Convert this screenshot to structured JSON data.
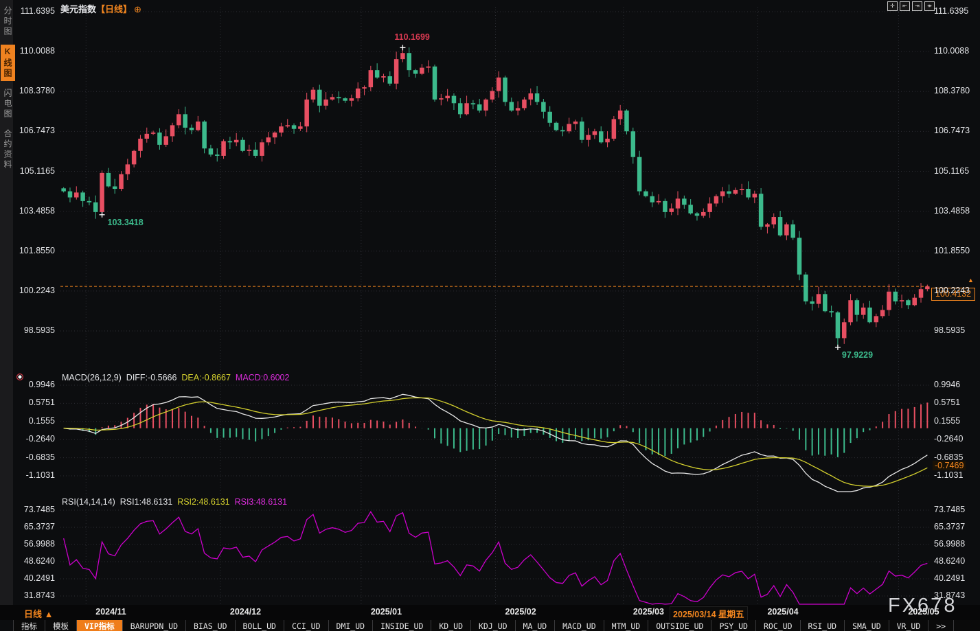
{
  "window": {
    "symbol": "美元指数",
    "period": "【日线】",
    "plus_icon": "⊕"
  },
  "sidebar": {
    "items": [
      {
        "label": "分时图",
        "active": false
      },
      {
        "label": "K线图",
        "active": true
      },
      {
        "label": "闪电图",
        "active": false
      },
      {
        "label": "合约资料",
        "active": false
      }
    ]
  },
  "top_icons": [
    "crosshair-icon",
    "y-axis-scale-icon",
    "x-axis-scale-icon",
    "pan-right-icon"
  ],
  "price_panel": {
    "axis_labels": [
      "111.6395",
      "110.0088",
      "108.3780",
      "106.7473",
      "105.1165",
      "103.4858",
      "101.8550",
      "100.2243",
      "98.5935"
    ],
    "high_annotation": "110.1699",
    "low_annotation_1": "103.3418",
    "low_annotation_2": "97.9229",
    "last_price_tag": "100.4132",
    "tag_arrow": "▲▲"
  },
  "macd_panel": {
    "name": "MACD(26,12,9)",
    "diff_label": "DIFF:-0.5666",
    "dea_label": "DEA:-0.8667",
    "macd_label": "MACD:0.6002",
    "axis_labels": [
      "0.9946",
      "0.5751",
      "0.1555",
      "-0.2640",
      "-0.6835",
      "-1.1031"
    ],
    "axis_tag": "-0.7469"
  },
  "rsi_panel": {
    "name": "RSI(14,14,14)",
    "rsi1_label": "RSI1:48.6131",
    "rsi2_label": "RSI2:48.6131",
    "rsi3_label": "RSI3:48.6131",
    "axis_labels": [
      "73.7485",
      "65.3737",
      "56.9988",
      "48.6240",
      "40.2491",
      "31.8743"
    ]
  },
  "bottom": {
    "period_button": "日线 ▲",
    "date_highlight": "2025/03/14 星期五",
    "toolbar": [
      "指标",
      "模板",
      "VIP指标",
      "BARUPDN_UD",
      "BIAS_UD",
      "BOLL_UD",
      "CCI_UD",
      "DMI_UD",
      "INSIDE_UD",
      "KD_UD",
      "KDJ_UD",
      "MA_UD",
      "MACD_UD",
      "MTM_UD",
      "OUTSIDE_UD",
      "PSY_UD",
      "ROC_UD",
      "RSI_UD",
      "SMA_UD",
      "VR_UD",
      ">>"
    ],
    "toolbar_active": "VIP指标"
  },
  "watermark": "FX678",
  "colors": {
    "up": "#e84f62",
    "down": "#3cba8c",
    "accent": "#f5871f",
    "diff_line": "#e9e9e9",
    "dea_line": "#d4d02e",
    "macd_value": "#dd2ddd",
    "rsi_line": "#cc00cc",
    "grid": "#2c2d33",
    "annotation_red": "#d93a52",
    "annotation_green": "#3cba8c"
  },
  "chart_data": [
    {
      "type": "candlestick",
      "title": "美元指数 日线",
      "ylim": [
        97.0,
        111.84
      ],
      "y_tick_values": [
        111.6395,
        110.0088,
        108.378,
        106.7473,
        105.1165,
        103.4858,
        101.855,
        100.2243,
        98.5935
      ],
      "closes": [
        104.3,
        104.05,
        104.25,
        103.9,
        103.85,
        103.45,
        105.05,
        104.5,
        104.4,
        105.0,
        105.4,
        105.95,
        106.45,
        106.65,
        106.7,
        106.2,
        106.55,
        107.0,
        107.45,
        106.9,
        106.8,
        107.15,
        106.05,
        105.8,
        105.75,
        106.35,
        106.3,
        106.4,
        105.95,
        106.0,
        105.75,
        106.3,
        106.5,
        106.7,
        106.95,
        107.0,
        106.85,
        106.95,
        108.05,
        108.45,
        107.8,
        108.05,
        108.15,
        108.1,
        108.0,
        108.1,
        108.5,
        108.55,
        109.25,
        108.95,
        109.0,
        108.7,
        109.7,
        109.95,
        109.25,
        109.1,
        109.35,
        109.4,
        108.05,
        108.1,
        108.2,
        107.9,
        107.45,
        107.9,
        107.85,
        107.6,
        108.05,
        108.4,
        108.95,
        107.95,
        107.6,
        107.7,
        108.05,
        108.3,
        107.95,
        107.55,
        107.1,
        106.8,
        106.75,
        107.05,
        107.15,
        106.4,
        106.6,
        106.75,
        106.3,
        106.45,
        107.25,
        107.6,
        106.75,
        105.7,
        104.3,
        104.1,
        103.85,
        103.9,
        103.45,
        103.6,
        104.0,
        103.75,
        103.4,
        103.3,
        103.45,
        103.8,
        104.1,
        104.3,
        104.2,
        104.35,
        104.4,
        104.05,
        104.2,
        102.85,
        102.95,
        103.25,
        102.5,
        102.95,
        102.4,
        100.9,
        99.8,
        99.7,
        100.1,
        99.4,
        99.35,
        98.3,
        98.95,
        99.85,
        99.25,
        99.55,
        98.95,
        99.2,
        99.45,
        100.2,
        99.8,
        99.85,
        99.65,
        99.95,
        100.3,
        100.41
      ],
      "month_start_indices": [
        4,
        25,
        47,
        68,
        88,
        109,
        131
      ],
      "month_labels": [
        "2024/11",
        "2024/12",
        "2025/01",
        "2025/02",
        "2025/03",
        "2025/04",
        "2025/05"
      ],
      "extremes": {
        "high": {
          "index": 53,
          "value": 110.1699
        },
        "low1": {
          "index": 6,
          "value": 103.3418
        },
        "low2": {
          "index": 121,
          "value": 97.9229
        }
      },
      "last_price": 100.4132,
      "highlight_date_index": 97
    },
    {
      "type": "bar+line",
      "name": "MACD",
      "params": [
        26,
        12,
        9
      ],
      "shown_values": {
        "DIFF": -0.5666,
        "DEA": -0.8667,
        "MACD": 0.6002
      },
      "y_tick_values": [
        0.9946,
        0.5751,
        0.1555,
        -0.264,
        -0.6835,
        -1.1031
      ],
      "axis_tag_value": -0.7469,
      "derived_from": "closes of candlestick series (EMA12-EMA26, EMA9 signal, hist=2*(DIFF-DEA))"
    },
    {
      "type": "line",
      "name": "RSI",
      "params": [
        14,
        14,
        14
      ],
      "shown_values": {
        "RSI1": 48.6131,
        "RSI2": 48.6131,
        "RSI3": 48.6131
      },
      "y_tick_values": [
        73.7485,
        65.3737,
        56.9988,
        48.624,
        40.2491,
        31.8743
      ],
      "derived_from": "closes of candlestick series (Wilder RSI 14)"
    }
  ]
}
